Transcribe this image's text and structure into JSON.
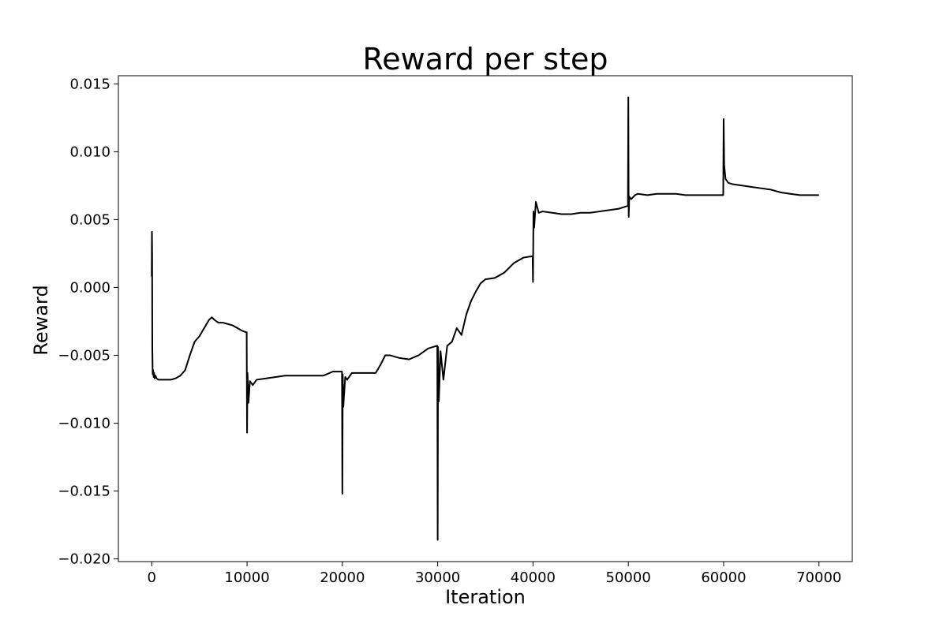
{
  "chart_data": {
    "type": "line",
    "title": "Reward per step",
    "xlabel": "Iteration",
    "ylabel": "Reward",
    "xlim": [
      -3500,
      73500
    ],
    "ylim": [
      -0.0202,
      0.0156
    ],
    "xticks": [
      0,
      10000,
      20000,
      30000,
      40000,
      50000,
      60000,
      70000
    ],
    "xtick_labels": [
      "0",
      "10000",
      "20000",
      "30000",
      "40000",
      "50000",
      "60000",
      "70000"
    ],
    "yticks": [
      -0.02,
      -0.015,
      -0.01,
      -0.005,
      0.0,
      0.005,
      0.01,
      0.015
    ],
    "ytick_labels": [
      "−0.020",
      "−0.015",
      "−0.010",
      "−0.005",
      "0.000",
      "0.005",
      "0.010",
      "0.015"
    ],
    "grid": false,
    "line_color": "#000000",
    "series": [
      {
        "x": [
          0,
          20,
          40,
          60,
          100,
          150,
          200,
          250,
          300,
          400,
          500,
          700,
          1000,
          1500,
          2000,
          2500,
          3000,
          3500,
          4000,
          4500,
          5000,
          5500,
          6000,
          6300,
          6600,
          7000,
          7500,
          8000,
          8500,
          9000,
          9500,
          9900,
          9960,
          10000,
          10050,
          10150,
          10300,
          10600,
          11000,
          12000,
          13000,
          14000,
          15000,
          16000,
          17000,
          18000,
          19000,
          19900,
          19960,
          20000,
          20040,
          20100,
          20300,
          20500,
          21000,
          22000,
          23000,
          23500,
          24000,
          24500,
          25000,
          26000,
          27000,
          28000,
          29000,
          29900,
          29960,
          30000,
          30040,
          30120,
          30300,
          30600,
          31000,
          31500,
          32000,
          32500,
          33000,
          33500,
          34000,
          34500,
          35000,
          36000,
          37000,
          38000,
          39000,
          39900,
          39960,
          40000,
          40050,
          40120,
          40300,
          40600,
          41000,
          42000,
          43000,
          44000,
          45000,
          46000,
          47000,
          48000,
          49000,
          49900,
          49960,
          50000,
          50040,
          50100,
          50300,
          50700,
          51000,
          52000,
          53000,
          54000,
          55000,
          56000,
          57000,
          58000,
          59000,
          59900,
          59960,
          60000,
          60060,
          60200,
          60500,
          61000,
          62000,
          63000,
          64000,
          65000,
          66000,
          67000,
          68000,
          69000,
          70000
        ],
        "y": [
          0.0008,
          0.0041,
          0.0025,
          -0.0045,
          -0.0064,
          -0.0061,
          -0.0066,
          -0.0063,
          -0.0067,
          -0.0065,
          -0.0067,
          -0.0068,
          -0.0068,
          -0.0068,
          -0.0068,
          -0.0067,
          -0.0065,
          -0.0061,
          -0.005,
          -0.004,
          -0.0036,
          -0.003,
          -0.0024,
          -0.0022,
          -0.0024,
          -0.0026,
          -0.0026,
          -0.0027,
          -0.0028,
          -0.003,
          -0.0032,
          -0.0033,
          -0.0033,
          -0.0107,
          -0.0063,
          -0.0085,
          -0.0069,
          -0.0072,
          -0.0068,
          -0.0067,
          -0.0066,
          -0.0065,
          -0.0065,
          -0.0065,
          -0.0065,
          -0.0065,
          -0.0062,
          -0.0062,
          -0.0062,
          -0.0152,
          -0.0064,
          -0.0088,
          -0.0066,
          -0.0068,
          -0.0063,
          -0.0063,
          -0.0063,
          -0.0063,
          -0.0057,
          -0.005,
          -0.005,
          -0.0052,
          -0.0053,
          -0.005,
          -0.0045,
          -0.0043,
          -0.0043,
          -0.0186,
          -0.0044,
          -0.0084,
          -0.0047,
          -0.0068,
          -0.0043,
          -0.004,
          -0.003,
          -0.0035,
          -0.002,
          -0.001,
          -0.0003,
          0.0003,
          0.0006,
          0.0007,
          0.0011,
          0.0018,
          0.0022,
          0.0023,
          0.0023,
          0.0004,
          0.0056,
          0.0044,
          0.0063,
          0.0055,
          0.0056,
          0.0055,
          0.0054,
          0.0054,
          0.0055,
          0.0055,
          0.0056,
          0.0057,
          0.0058,
          0.006,
          0.006,
          0.014,
          0.0052,
          0.0067,
          0.0065,
          0.0068,
          0.0069,
          0.0068,
          0.0069,
          0.0069,
          0.0069,
          0.0068,
          0.0068,
          0.0068,
          0.0068,
          0.0068,
          0.0068,
          0.0124,
          0.009,
          0.008,
          0.0077,
          0.0076,
          0.0075,
          0.0074,
          0.0073,
          0.0072,
          0.007,
          0.0069,
          0.0068,
          0.0068,
          0.0068
        ]
      }
    ]
  }
}
